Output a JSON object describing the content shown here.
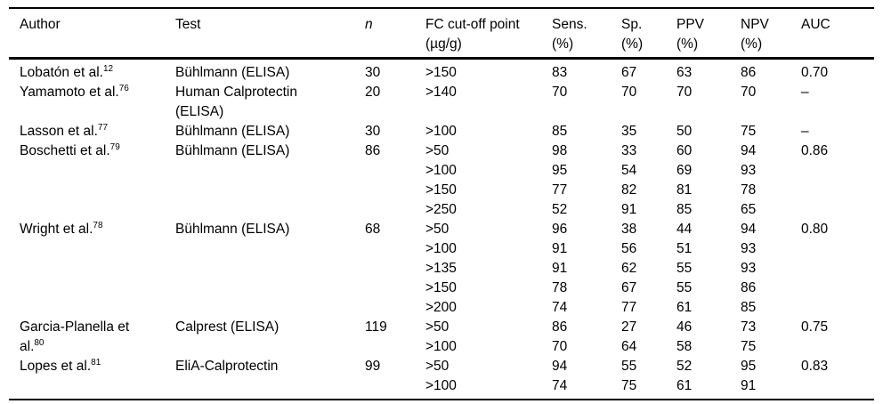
{
  "page": {
    "background": "#ffffff",
    "text_color": "#000000",
    "rule_color": "#000000"
  },
  "table": {
    "columns": [
      {
        "label": "Author",
        "sub": ""
      },
      {
        "label": "Test",
        "sub": ""
      },
      {
        "label": "n",
        "sub": ""
      },
      {
        "label": "FC cut-off point",
        "sub": "(µg/g)"
      },
      {
        "label": "Sens.",
        "sub": "(%)"
      },
      {
        "label": "Sp.",
        "sub": "(%)"
      },
      {
        "label": "PPV",
        "sub": "(%)"
      },
      {
        "label": "NPV",
        "sub": "(%)"
      },
      {
        "label": "AUC",
        "sub": ""
      }
    ],
    "studies": [
      {
        "author": "Lobatón et al.",
        "ref": "12",
        "test": "Bühlmann (ELISA)",
        "n": "30",
        "auc": "0.70",
        "rows": [
          {
            "cutoff": ">150",
            "sens": "83",
            "sp": "67",
            "ppv": "63",
            "npv": "86"
          }
        ]
      },
      {
        "author": "Yamamoto et al.",
        "ref": "76",
        "test": "Human Calprotectin\n(ELISA)",
        "n": "20",
        "auc": "–",
        "rows": [
          {
            "cutoff": ">140",
            "sens": "70",
            "sp": "70",
            "ppv": "70",
            "npv": "70"
          }
        ]
      },
      {
        "author": "Lasson et al.",
        "ref": "77",
        "test": "Bühlmann (ELISA)",
        "n": "30",
        "auc": "–",
        "rows": [
          {
            "cutoff": ">100",
            "sens": "85",
            "sp": "35",
            "ppv": "50",
            "npv": "75"
          }
        ]
      },
      {
        "author": "Boschetti et al.",
        "ref": "79",
        "test": "Bühlmann (ELISA)",
        "n": "86",
        "auc": "0.86",
        "rows": [
          {
            "cutoff": ">50",
            "sens": "98",
            "sp": "33",
            "ppv": "60",
            "npv": "94"
          },
          {
            "cutoff": ">100",
            "sens": "95",
            "sp": "54",
            "ppv": "69",
            "npv": "93"
          },
          {
            "cutoff": ">150",
            "sens": "77",
            "sp": "82",
            "ppv": "81",
            "npv": "78"
          },
          {
            "cutoff": ">250",
            "sens": "52",
            "sp": "91",
            "ppv": "85",
            "npv": "65"
          }
        ]
      },
      {
        "author": "Wright et al.",
        "ref": "78",
        "test": "Bühlmann (ELISA)",
        "n": "68",
        "auc": "0.80",
        "rows": [
          {
            "cutoff": ">50",
            "sens": "96",
            "sp": "38",
            "ppv": "44",
            "npv": "94"
          },
          {
            "cutoff": ">100",
            "sens": "91",
            "sp": "56",
            "ppv": "51",
            "npv": "93"
          },
          {
            "cutoff": ">135",
            "sens": "91",
            "sp": "62",
            "ppv": "55",
            "npv": "93"
          },
          {
            "cutoff": ">150",
            "sens": "78",
            "sp": "67",
            "ppv": "55",
            "npv": "86"
          },
          {
            "cutoff": ">200",
            "sens": "74",
            "sp": "77",
            "ppv": "61",
            "npv": "85"
          }
        ]
      },
      {
        "author": "Garcia-Planella et\nal.",
        "ref": "80",
        "test": "Calprest (ELISA)",
        "n": "119",
        "auc": "0.75",
        "rows": [
          {
            "cutoff": ">50",
            "sens": "86",
            "sp": "27",
            "ppv": "46",
            "npv": "73"
          },
          {
            "cutoff": ">100",
            "sens": "70",
            "sp": "64",
            "ppv": "58",
            "npv": "75"
          }
        ]
      },
      {
        "author": "Lopes et al.",
        "ref": "81",
        "test": "EliA-Calprotectin",
        "n": "99",
        "auc": "0.83",
        "rows": [
          {
            "cutoff": ">50",
            "sens": "94",
            "sp": "55",
            "ppv": "52",
            "npv": "95"
          },
          {
            "cutoff": ">100",
            "sens": "74",
            "sp": "75",
            "ppv": "61",
            "npv": "91"
          }
        ]
      }
    ]
  }
}
